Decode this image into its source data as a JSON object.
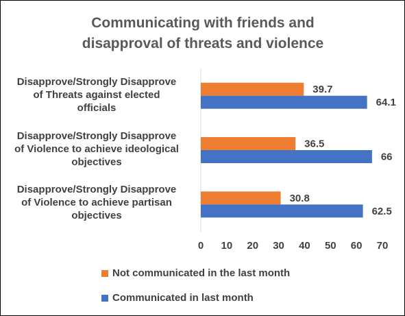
{
  "chart_data": {
    "type": "bar",
    "orientation": "horizontal",
    "title": "Communicating with friends and disapproval of threats and violence",
    "title_lines": [
      "Communicating with friends and",
      "disapproval of threats and violence"
    ],
    "categories": [
      [
        "Disapprove/Strongly Disapprove",
        "of Threats against elected",
        "officials"
      ],
      [
        "Disapprove/Strongly Disapprove",
        "of Violence to achieve ideological",
        "objectives"
      ],
      [
        "Disapprove/Strongly Disapprove",
        "of Violence to achieve partisan",
        "objectives"
      ]
    ],
    "series": [
      {
        "name": "Not communicated in the last month",
        "color": "#ED7D31",
        "values": [
          39.7,
          36.5,
          30.8
        ],
        "labels": [
          "39.7",
          "36.5",
          "30.8"
        ]
      },
      {
        "name": "Communicated in last month",
        "color": "#4472C4",
        "values": [
          64.1,
          66,
          62.5
        ],
        "labels": [
          "64.1",
          "66",
          "62.5"
        ]
      }
    ],
    "xlim": [
      0,
      70
    ],
    "xticks": [
      "0",
      "10",
      "20",
      "30",
      "40",
      "50",
      "60",
      "70"
    ],
    "grid": false,
    "legend": "bottom"
  }
}
